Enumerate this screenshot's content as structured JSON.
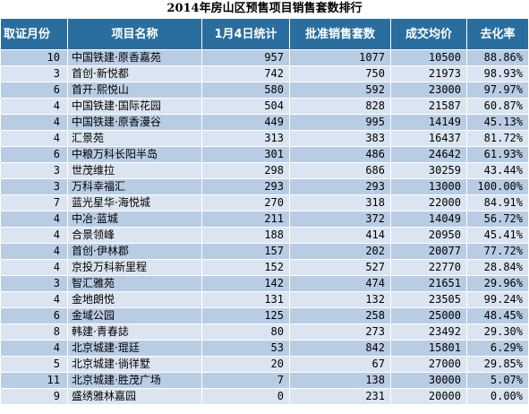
{
  "title": "2014年房山区预售项目销售套数排行",
  "headers": [
    "取证月份",
    "项目名称",
    "1月4日统计",
    "批准销售套数",
    "成交均价",
    "去化率"
  ],
  "rows": [
    [
      "10",
      "中国铁建·原香嘉苑",
      "957",
      "1077",
      "10500",
      "88.86%"
    ],
    [
      "3",
      "首创·新悦都",
      "742",
      "750",
      "21973",
      "98.93%"
    ],
    [
      "6",
      "首开·熙悦山",
      "580",
      "592",
      "23000",
      "97.97%"
    ],
    [
      "4",
      "中国铁建·国际花园",
      "504",
      "828",
      "21587",
      "60.87%"
    ],
    [
      "4",
      "中国铁建·原香漫谷",
      "449",
      "995",
      "14149",
      "45.13%"
    ],
    [
      "4",
      "汇景苑",
      "313",
      "383",
      "16437",
      "81.72%"
    ],
    [
      "6",
      "中粮万科长阳半岛",
      "301",
      "486",
      "24642",
      "61.93%"
    ],
    [
      "3",
      "世茂维拉",
      "298",
      "686",
      "30259",
      "43.44%"
    ],
    [
      "3",
      "万科幸福汇",
      "293",
      "293",
      "13000",
      "100.00%"
    ],
    [
      "7",
      "蓝光星华·海悦城",
      "270",
      "318",
      "22000",
      "84.91%"
    ],
    [
      "4",
      "中冶·蓝城",
      "211",
      "372",
      "14049",
      "56.72%"
    ],
    [
      "4",
      "合景领峰",
      "188",
      "414",
      "20950",
      "45.41%"
    ],
    [
      "4",
      "首创·伊林郡",
      "157",
      "202",
      "20077",
      "77.72%"
    ],
    [
      "4",
      "京投万科新里程",
      "152",
      "527",
      "22770",
      "28.84%"
    ],
    [
      "3",
      "智汇雅苑",
      "142",
      "474",
      "21651",
      "29.96%"
    ],
    [
      "4",
      "金地朗悦",
      "131",
      "132",
      "23505",
      "99.24%"
    ],
    [
      "6",
      "金域公园",
      "125",
      "258",
      "25000",
      "48.45%"
    ],
    [
      "8",
      "韩建·青春誌",
      "80",
      "273",
      "23492",
      "29.30%"
    ],
    [
      "4",
      "北京城建·琨廷",
      "53",
      "842",
      "15801",
      "6.29%"
    ],
    [
      "5",
      "北京城建·徜徉墅",
      "20",
      "67",
      "27000",
      "29.85%"
    ],
    [
      "11",
      "北京城建·胜茂广场",
      "7",
      "138",
      "30000",
      "5.07%"
    ],
    [
      "9",
      "盛绣雅林嘉园",
      "0",
      "231",
      "20000",
      "0.00%"
    ]
  ]
}
